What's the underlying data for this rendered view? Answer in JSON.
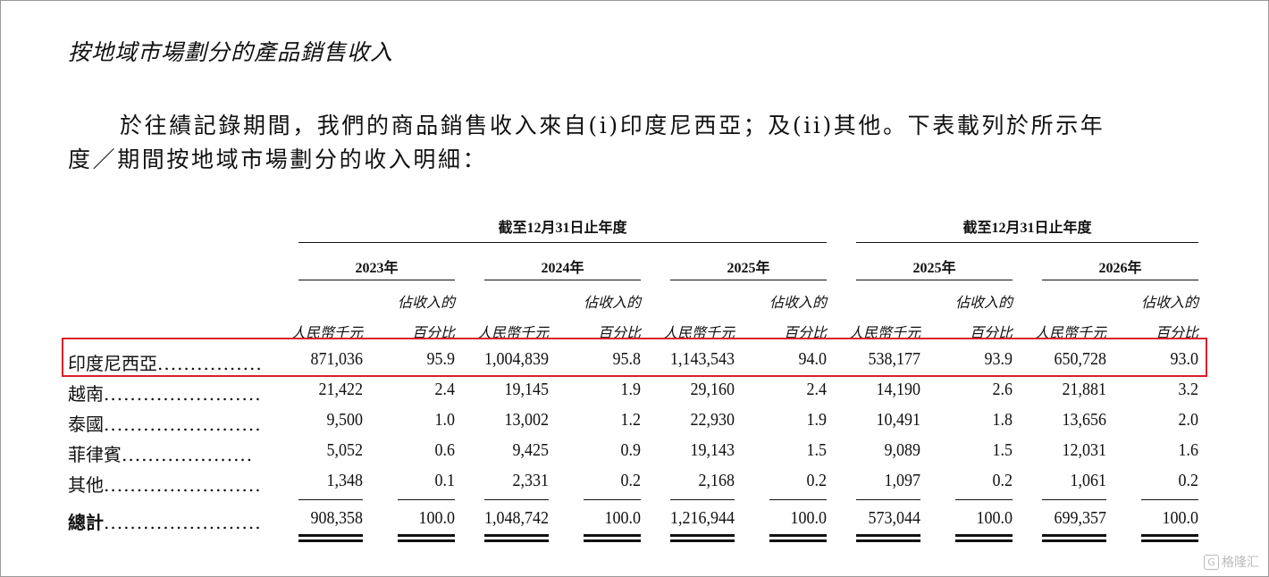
{
  "section_title": "按地域市場劃分的產品銷售收入",
  "paragraph": {
    "line1": "於往績記錄期間，我們的商品銷售收入來自(i)印度尼西亞；及(ii)其他。下表載列於所示年",
    "line2": "度／期間按地域市場劃分的收入明細："
  },
  "table": {
    "group_headers": [
      "截至12月31日止年度",
      "截至12月31日止年度"
    ],
    "years": [
      "2023年",
      "2024年",
      "2025年",
      "2025年",
      "2026年"
    ],
    "sub_headers": {
      "amount": "人民幣千元",
      "pct_line1": "佔收入的",
      "pct_line2": "百分比"
    },
    "rows": [
      {
        "label": "印度尼西亞",
        "leader": "................",
        "values": [
          "871,036",
          "95.9",
          "1,004,839",
          "95.8",
          "1,143,543",
          "94.0",
          "538,177",
          "93.9",
          "650,728",
          "93.0"
        ]
      },
      {
        "label": "越南",
        "leader": "........................",
        "values": [
          "21,422",
          "2.4",
          "19,145",
          "1.9",
          "29,160",
          "2.4",
          "14,190",
          "2.6",
          "21,881",
          "3.2"
        ]
      },
      {
        "label": "泰國",
        "leader": "........................",
        "values": [
          "9,500",
          "1.0",
          "13,002",
          "1.2",
          "22,930",
          "1.9",
          "10,491",
          "1.8",
          "13,656",
          "2.0"
        ]
      },
      {
        "label": "菲律賓",
        "leader": "....................",
        "values": [
          "5,052",
          "0.6",
          "9,425",
          "0.9",
          "19,143",
          "1.5",
          "9,089",
          "1.5",
          "12,031",
          "1.6"
        ]
      },
      {
        "label": "其他",
        "leader": "........................",
        "values": [
          "1,348",
          "0.1",
          "2,331",
          "0.2",
          "2,168",
          "0.2",
          "1,097",
          "0.2",
          "1,061",
          "0.2"
        ]
      }
    ],
    "total": {
      "label": "總計",
      "leader": "........................",
      "values": [
        "908,358",
        "100.0",
        "1,048,742",
        "100.0",
        "1,216,944",
        "100.0",
        "573,044",
        "100.0",
        "699,357",
        "100.0"
      ]
    }
  },
  "highlight_color": "#d8202a",
  "watermark": {
    "icon": "gelonghui-logo-icon",
    "text": "格隆汇"
  }
}
